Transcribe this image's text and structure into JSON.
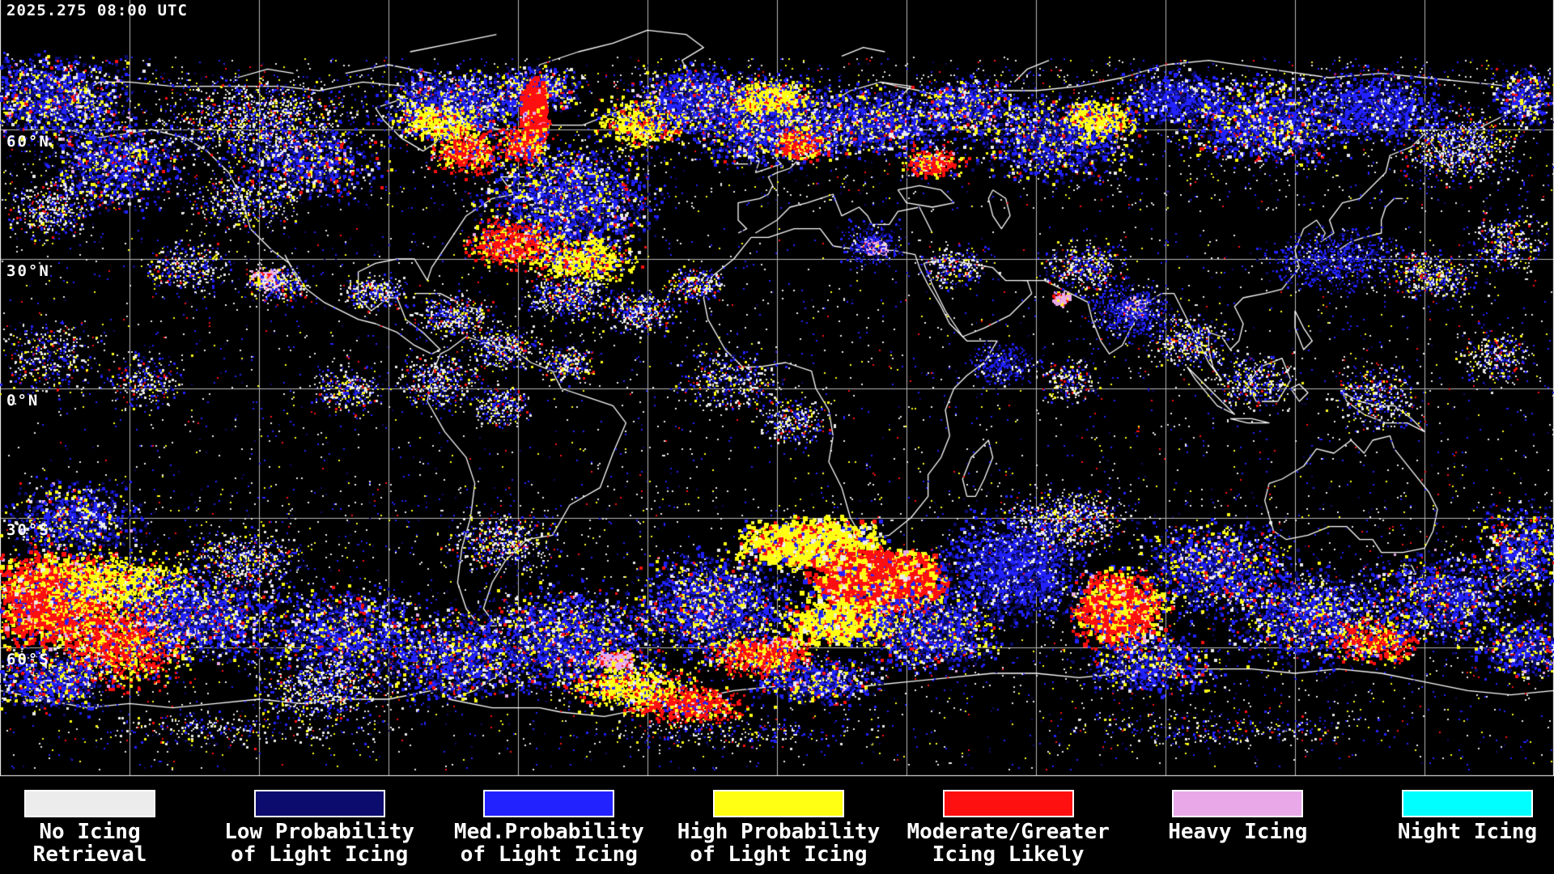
{
  "header": {
    "timestamp": "2025.275 08:00 UTC"
  },
  "map": {
    "background_color": "#000000",
    "grid_color": "#b9b9b9",
    "border_color": "#ffffff",
    "coastline_color": "#ffffff",
    "lon_grid_spacing_deg": 30,
    "lat_grid_spacing_deg": 30,
    "latitude_labels": [
      {
        "text": "60°N",
        "lat": 60
      },
      {
        "text": "30°N",
        "lat": 30
      },
      {
        "text": "0°N",
        "lat": 0
      },
      {
        "text": "30°S",
        "lat": -30
      },
      {
        "text": "60°S",
        "lat": -60
      }
    ]
  },
  "legend": {
    "items": [
      {
        "id": "no-icing-retrieval",
        "color": "#ececec",
        "lines": [
          "No Icing",
          "Retrieval"
        ]
      },
      {
        "id": "low-probability",
        "color": "#0c0c6e",
        "lines": [
          "Low Probability",
          "of Light Icing"
        ]
      },
      {
        "id": "med-probability",
        "color": "#2222ff",
        "lines": [
          "Med.Probability",
          "of Light Icing"
        ]
      },
      {
        "id": "high-probability",
        "color": "#ffff14",
        "lines": [
          "High Probability",
          "of Light Icing"
        ]
      },
      {
        "id": "moderate-greater",
        "color": "#ff1010",
        "lines": [
          "Moderate/Greater",
          "Icing Likely"
        ]
      },
      {
        "id": "heavy-icing",
        "color": "#e9a9e9",
        "lines": [
          "Heavy Icing"
        ]
      },
      {
        "id": "night-icing",
        "color": "#00ffff",
        "lines": [
          "Night Icing"
        ]
      }
    ]
  }
}
